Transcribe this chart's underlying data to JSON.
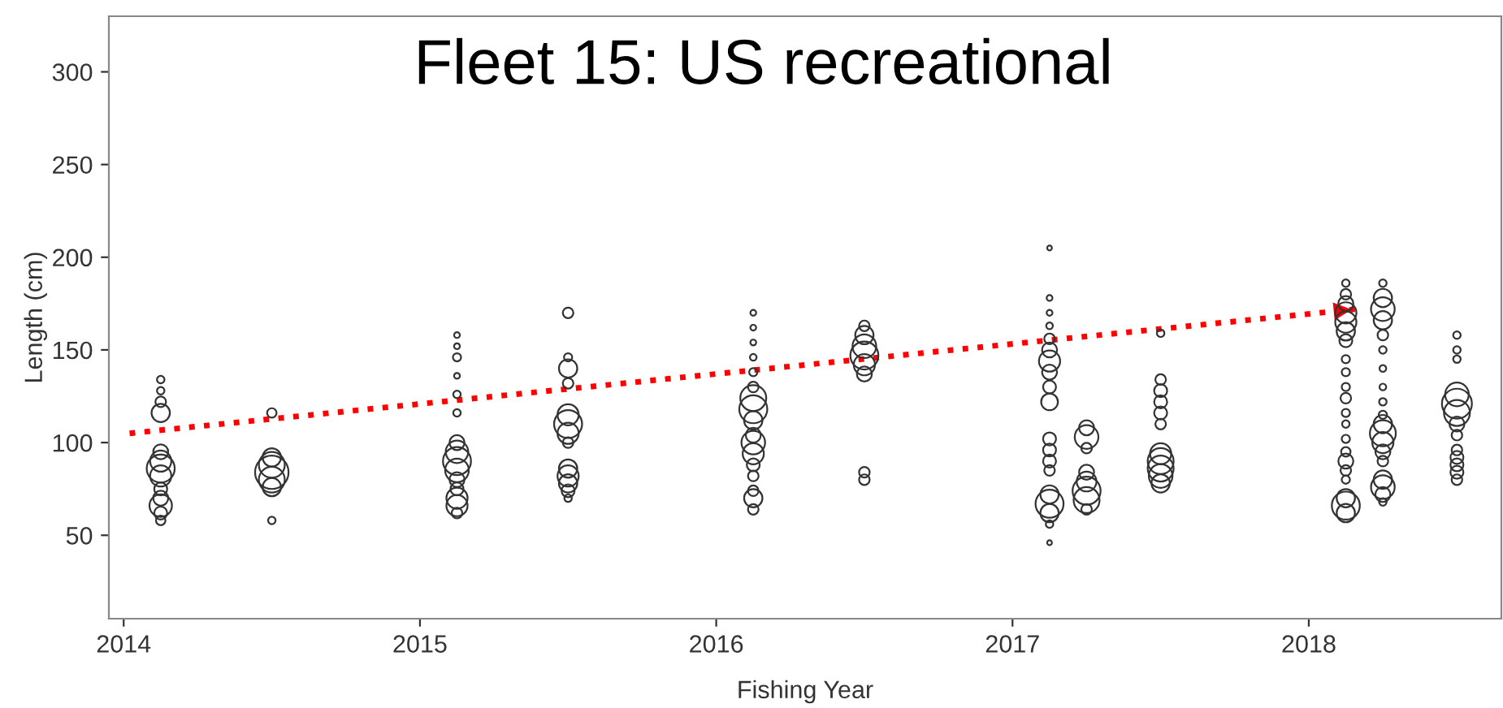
{
  "chart_data": {
    "type": "bubble",
    "title": "Fleet 15: US recreational",
    "xlabel": "Fishing Year",
    "ylabel": "Length (cm)",
    "xlim": [
      2013.95,
      2018.65
    ],
    "xticks": [
      2014,
      2015,
      2016,
      2017,
      2018
    ],
    "ylim": [
      5,
      330
    ],
    "yticks": [
      50,
      100,
      150,
      200,
      250,
      300
    ],
    "grid": false,
    "legend": false,
    "series": [
      {
        "color": "#333333",
        "marker": "circle",
        "x": [
          2014.125,
          2014.125,
          2014.125,
          2014.125,
          2014.125,
          2014.125,
          2014.125,
          2014.125,
          2014.125,
          2014.125,
          2014.125,
          2014.125,
          2014.125,
          2014.5,
          2014.5,
          2014.5,
          2014.5,
          2014.5,
          2014.5,
          2014.5,
          2015.125,
          2015.125,
          2015.125,
          2015.125,
          2015.125,
          2015.125,
          2015.125,
          2015.125,
          2015.125,
          2015.125,
          2015.125,
          2015.125,
          2015.125,
          2015.125,
          2015.125,
          2015.5,
          2015.5,
          2015.5,
          2015.5,
          2015.5,
          2015.5,
          2015.5,
          2015.5,
          2015.5,
          2015.5,
          2015.5,
          2015.5,
          2015.5,
          2016.125,
          2016.125,
          2016.125,
          2016.125,
          2016.125,
          2016.125,
          2016.125,
          2016.125,
          2016.125,
          2016.125,
          2016.125,
          2016.125,
          2016.125,
          2016.125,
          2016.125,
          2016.125,
          2016.125,
          2016.5,
          2016.5,
          2016.5,
          2016.5,
          2016.5,
          2016.5,
          2016.5,
          2016.5,
          2017.125,
          2017.125,
          2017.125,
          2017.125,
          2017.125,
          2017.125,
          2017.125,
          2017.125,
          2017.125,
          2017.125,
          2017.125,
          2017.125,
          2017.125,
          2017.125,
          2017.125,
          2017.125,
          2017.125,
          2017.125,
          2017.125,
          2017.25,
          2017.25,
          2017.25,
          2017.25,
          2017.25,
          2017.25,
          2017.25,
          2017.25,
          2017.5,
          2017.5,
          2017.5,
          2017.5,
          2017.5,
          2017.5,
          2017.5,
          2017.5,
          2017.5,
          2017.5,
          2017.5,
          2018.125,
          2018.125,
          2018.125,
          2018.125,
          2018.125,
          2018.125,
          2018.125,
          2018.125,
          2018.125,
          2018.125,
          2018.125,
          2018.125,
          2018.125,
          2018.125,
          2018.125,
          2018.125,
          2018.125,
          2018.125,
          2018.125,
          2018.125,
          2018.125,
          2018.25,
          2018.25,
          2018.25,
          2018.25,
          2018.25,
          2018.25,
          2018.25,
          2018.25,
          2018.25,
          2018.25,
          2018.25,
          2018.25,
          2018.25,
          2018.25,
          2018.25,
          2018.25,
          2018.25,
          2018.25,
          2018.25,
          2018.5,
          2018.5,
          2018.5,
          2018.5,
          2018.5,
          2018.5,
          2018.5,
          2018.5,
          2018.5,
          2018.5,
          2018.5,
          2018.5,
          2018.5
        ],
        "values": [
          134,
          128,
          122,
          116,
          95,
          90,
          86,
          82,
          75,
          70,
          66,
          62,
          58,
          116,
          92,
          88,
          84,
          80,
          76,
          58,
          158,
          152,
          146,
          136,
          126,
          116,
          100,
          95,
          90,
          85,
          80,
          75,
          70,
          66,
          62,
          170,
          146,
          140,
          132,
          115,
          110,
          105,
          100,
          86,
          82,
          78,
          74,
          70,
          170,
          162,
          154,
          146,
          138,
          130,
          124,
          118,
          112,
          104,
          100,
          94,
          88,
          82,
          74,
          70,
          64,
          163,
          158,
          152,
          147,
          142,
          137,
          84,
          80,
          205,
          178,
          170,
          163,
          156,
          150,
          144,
          138,
          130,
          122,
          102,
          96,
          90,
          85,
          72,
          67,
          62,
          56,
          46,
          108,
          103,
          97,
          84,
          79,
          74,
          69,
          64,
          159,
          134,
          128,
          122,
          116,
          110,
          94,
          90,
          86,
          82,
          78,
          186,
          180,
          175,
          170,
          165,
          160,
          155,
          145,
          138,
          130,
          124,
          116,
          110,
          102,
          95,
          90,
          85,
          80,
          70,
          66,
          62,
          186,
          178,
          172,
          166,
          158,
          150,
          140,
          130,
          122,
          115,
          110,
          105,
          100,
          95,
          90,
          80,
          76,
          72,
          68,
          158,
          150,
          145,
          126,
          121,
          116,
          110,
          104,
          96,
          92,
          88,
          84,
          80
        ],
        "sizes": [
          0.05,
          0.05,
          0.1,
          0.3,
          0.2,
          0.4,
          0.7,
          0.4,
          0.15,
          0.2,
          0.45,
          0.15,
          0.08,
          0.08,
          0.3,
          0.6,
          1,
          0.6,
          0.3,
          0.05,
          0.03,
          0.03,
          0.06,
          0.03,
          0.05,
          0.05,
          0.2,
          0.45,
          0.7,
          0.5,
          0.2,
          0.15,
          0.4,
          0.4,
          0.1,
          0.1,
          0.06,
          0.3,
          0.1,
          0.4,
          0.7,
          0.4,
          0.1,
          0.3,
          0.4,
          0.3,
          0.15,
          0.05,
          0.03,
          0.03,
          0.03,
          0.04,
          0.06,
          0.1,
          0.6,
          0.7,
          0.3,
          0.2,
          0.5,
          0.4,
          0.15,
          0.1,
          0.1,
          0.3,
          0.1,
          0.1,
          0.3,
          0.5,
          0.7,
          0.4,
          0.2,
          0.1,
          0.1,
          0.02,
          0.03,
          0.03,
          0.04,
          0.1,
          0.2,
          0.4,
          0.2,
          0.15,
          0.25,
          0.15,
          0.15,
          0.15,
          0.1,
          0.3,
          0.7,
          0.3,
          0.05,
          0.02,
          0.2,
          0.5,
          0.1,
          0.2,
          0.35,
          0.7,
          0.6,
          0.1,
          0.05,
          0.1,
          0.15,
          0.15,
          0.15,
          0.1,
          0.4,
          0.6,
          0.6,
          0.5,
          0.3,
          0.05,
          0.1,
          0.2,
          0.4,
          0.4,
          0.3,
          0.15,
          0.06,
          0.06,
          0.06,
          0.1,
          0.06,
          0.05,
          0.06,
          0.08,
          0.2,
          0.1,
          0.06,
          0.3,
          0.7,
          0.3,
          0.05,
          0.3,
          0.5,
          0.3,
          0.1,
          0.05,
          0.04,
          0.04,
          0.05,
          0.06,
          0.3,
          0.6,
          0.4,
          0.2,
          0.1,
          0.3,
          0.5,
          0.2,
          0.05,
          0.05,
          0.05,
          0.05,
          0.5,
          0.8,
          0.6,
          0.2,
          0.1,
          0.1,
          0.15,
          0.15,
          0.15,
          0.1
        ]
      },
      {
        "type": "line",
        "color": "#ff0000",
        "line_style": "dotted",
        "x": [
          2014.02,
          2018.16
        ],
        "values": [
          105,
          172
        ]
      }
    ]
  }
}
